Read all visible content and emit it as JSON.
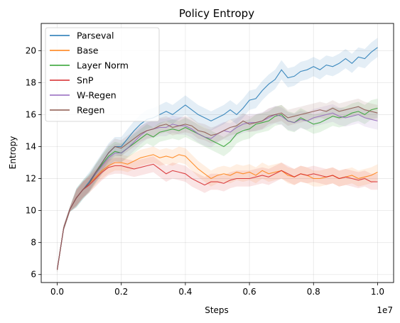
{
  "chart_data": {
    "type": "line",
    "title": "Policy Entropy",
    "xlabel": "Steps",
    "ylabel": "Entropy",
    "x_offset_label": "1e7",
    "xlim": [
      -0.05,
      1.05
    ],
    "ylim": [
      5.5,
      21.7
    ],
    "x_ticks": [
      0.0,
      0.2,
      0.4,
      0.6,
      0.8,
      1.0
    ],
    "x_tick_labels": [
      "0.0",
      "0.2",
      "0.4",
      "0.6",
      "0.8",
      "1.0"
    ],
    "y_ticks": [
      6,
      8,
      10,
      12,
      14,
      16,
      18,
      20
    ],
    "y_tick_labels": [
      "6",
      "8",
      "10",
      "12",
      "14",
      "16",
      "18",
      "20"
    ],
    "grid": true,
    "legend_position": "top-left",
    "x": [
      0,
      0.02,
      0.04,
      0.06,
      0.08,
      0.1,
      0.12,
      0.14,
      0.16,
      0.18,
      0.2,
      0.22,
      0.24,
      0.26,
      0.28,
      0.3,
      0.32,
      0.34,
      0.36,
      0.38,
      0.4,
      0.42,
      0.44,
      0.46,
      0.48,
      0.5,
      0.52,
      0.54,
      0.56,
      0.58,
      0.6,
      0.62,
      0.64,
      0.66,
      0.68,
      0.7,
      0.72,
      0.74,
      0.76,
      0.78,
      0.8,
      0.82,
      0.84,
      0.86,
      0.88,
      0.9,
      0.92,
      0.94,
      0.96,
      0.98,
      1.0
    ],
    "series": [
      {
        "name": "Parseval",
        "color": "#1f77b4",
        "band": 0.6,
        "values": [
          6.3,
          8.9,
          10.1,
          10.8,
          11.3,
          11.8,
          12.4,
          13.0,
          13.6,
          14.0,
          14.0,
          14.5,
          15.0,
          15.4,
          15.7,
          15.8,
          16.0,
          16.2,
          16.0,
          16.3,
          16.6,
          16.3,
          16.0,
          15.8,
          15.6,
          15.8,
          16.0,
          16.3,
          16.0,
          16.4,
          16.9,
          17.0,
          17.5,
          17.9,
          18.2,
          18.8,
          18.3,
          18.4,
          18.7,
          18.8,
          19.0,
          18.8,
          19.1,
          19.0,
          19.2,
          19.5,
          19.2,
          19.6,
          19.5,
          19.9,
          20.2
        ]
      },
      {
        "name": "Base",
        "color": "#ff7f0e",
        "band": 0.5,
        "values": [
          6.3,
          8.9,
          10.1,
          10.8,
          11.3,
          11.7,
          12.1,
          12.5,
          12.8,
          13.0,
          13.0,
          12.9,
          13.1,
          13.3,
          13.4,
          13.5,
          13.3,
          13.4,
          13.3,
          13.5,
          13.4,
          13.0,
          12.6,
          12.3,
          12.0,
          12.2,
          12.3,
          12.2,
          12.4,
          12.3,
          12.4,
          12.2,
          12.5,
          12.3,
          12.4,
          12.5,
          12.2,
          12.1,
          12.3,
          12.2,
          12.0,
          12.0,
          12.1,
          12.2,
          12.0,
          12.1,
          12.2,
          12.0,
          12.1,
          12.2,
          12.4
        ]
      },
      {
        "name": "Layer Norm",
        "color": "#2ca02c",
        "band": 0.6,
        "values": [
          6.3,
          8.9,
          10.1,
          10.8,
          11.3,
          11.7,
          12.3,
          12.9,
          13.4,
          13.7,
          13.6,
          13.9,
          14.2,
          14.5,
          14.8,
          14.6,
          14.9,
          15.0,
          15.1,
          15.0,
          15.2,
          15.0,
          14.8,
          14.6,
          14.4,
          14.2,
          14.0,
          14.3,
          14.8,
          15.0,
          15.1,
          15.4,
          15.5,
          15.6,
          15.9,
          16.0,
          15.6,
          15.5,
          15.8,
          15.6,
          15.4,
          15.5,
          15.7,
          15.9,
          15.8,
          15.9,
          16.1,
          16.2,
          16.0,
          16.3,
          16.4
        ]
      },
      {
        "name": "SnP",
        "color": "#d62728",
        "band": 0.5,
        "values": [
          6.3,
          8.9,
          10.1,
          10.8,
          11.3,
          11.6,
          12.0,
          12.4,
          12.7,
          12.8,
          12.8,
          12.7,
          12.6,
          12.7,
          12.8,
          12.9,
          12.6,
          12.3,
          12.5,
          12.4,
          12.3,
          12.0,
          11.8,
          11.6,
          11.8,
          11.8,
          11.7,
          11.9,
          12.0,
          12.0,
          12.0,
          12.1,
          12.2,
          12.1,
          12.3,
          12.5,
          12.3,
          12.1,
          12.3,
          12.2,
          12.3,
          12.2,
          12.1,
          12.2,
          12.0,
          12.1,
          12.0,
          11.9,
          12.0,
          11.8,
          11.8
        ]
      },
      {
        "name": "W-Regen",
        "color": "#9467bd",
        "band": 0.55,
        "values": [
          6.3,
          8.9,
          10.1,
          10.8,
          11.3,
          11.7,
          12.3,
          12.8,
          13.3,
          13.6,
          13.6,
          13.9,
          14.3,
          14.7,
          15.0,
          15.1,
          15.2,
          15.2,
          15.4,
          15.3,
          15.3,
          15.1,
          14.8,
          14.6,
          14.5,
          14.8,
          15.0,
          14.9,
          15.2,
          15.4,
          15.5,
          15.5,
          15.6,
          15.8,
          16.0,
          15.9,
          15.6,
          15.5,
          15.7,
          15.6,
          15.8,
          15.9,
          16.0,
          16.1,
          15.9,
          15.8,
          15.9,
          16.0,
          15.8,
          15.7,
          15.6
        ]
      },
      {
        "name": "Regen",
        "color": "#8c564b",
        "band": 0.5,
        "values": [
          6.3,
          8.9,
          10.1,
          10.8,
          11.3,
          11.7,
          12.4,
          13.0,
          13.6,
          14.0,
          13.9,
          14.2,
          14.5,
          14.8,
          15.0,
          15.1,
          15.3,
          15.4,
          15.2,
          15.3,
          15.4,
          15.3,
          15.0,
          14.9,
          14.7,
          14.8,
          15.0,
          15.2,
          15.3,
          15.6,
          15.4,
          15.5,
          15.6,
          15.9,
          16.0,
          16.1,
          15.8,
          15.9,
          16.0,
          16.1,
          16.2,
          16.3,
          16.2,
          16.4,
          16.2,
          16.3,
          16.4,
          16.5,
          16.3,
          16.2,
          16.1
        ]
      }
    ]
  }
}
